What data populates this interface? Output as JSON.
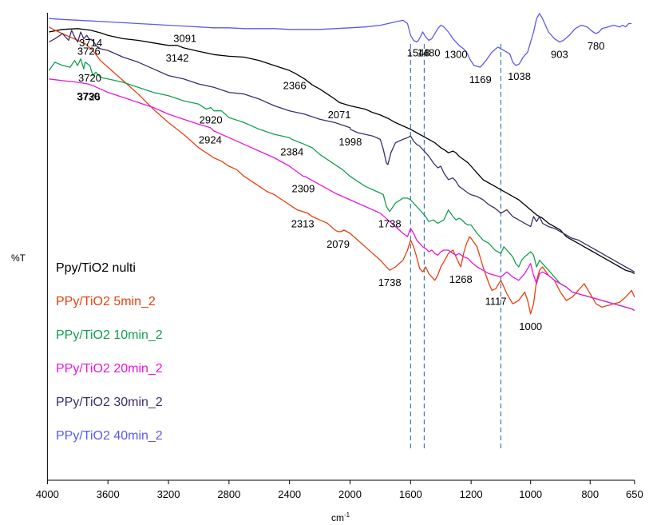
{
  "chart_data": {
    "type": "line",
    "title": "",
    "xlabel": "cm",
    "xlabel_sup": "-1",
    "ylabel": "%T",
    "xlim": [
      4000,
      650
    ],
    "x_reversed": true,
    "x_ticks": [
      "4000",
      "3600",
      "3200",
      "2800",
      "2400",
      "2000",
      "1600",
      "1200",
      "1000",
      "800",
      "650"
    ],
    "y_ticks_shown": false,
    "grid": false,
    "legend_placement": "left",
    "series": [
      {
        "name": "Ppy/TiO2 nulti",
        "color": "#000000",
        "x": [
          3990,
          3900,
          3800,
          3714,
          3650,
          3600,
          3500,
          3400,
          3300,
          3200,
          3142,
          3100,
          3000,
          2900,
          2800,
          2700,
          2600,
          2500,
          2400,
          2366,
          2300,
          2250,
          2200,
          2150,
          2100,
          2071,
          2000,
          1950,
          1900,
          1850,
          1800,
          1750,
          1700,
          1650,
          1600,
          1560,
          1520,
          1480,
          1440,
          1400,
          1380,
          1350,
          1320,
          1300,
          1280,
          1250,
          1220,
          1200,
          1180,
          1160,
          1140,
          1120,
          1100,
          1080,
          1060,
          1040,
          1020,
          1000,
          980,
          960,
          940,
          920,
          900,
          880,
          860,
          840,
          820,
          800,
          780,
          760,
          740,
          720,
          700,
          680,
          660,
          650
        ],
        "y": [
          100,
          101.5,
          102,
          101,
          99.5,
          98,
          96,
          95,
          93.5,
          92,
          92,
          90.5,
          88.5,
          86.5,
          85.5,
          85,
          83,
          80,
          77,
          75.5,
          72,
          68.5,
          66,
          63,
          60,
          58,
          56,
          55,
          54,
          52,
          50.5,
          48.5,
          46,
          44,
          42,
          40,
          38,
          36,
          34,
          31,
          30,
          28,
          29,
          28,
          26,
          24,
          22,
          20,
          16,
          12,
          10,
          8,
          6,
          4,
          2,
          0,
          -3,
          -6,
          -9,
          -11,
          -14,
          -16,
          -18,
          -22,
          -24,
          -26,
          -28,
          -30,
          -32,
          -34,
          -36,
          -38,
          -40,
          -42,
          -43,
          -44
        ]
      },
      {
        "name": "PPy/TiO2 5min_2",
        "color": "#e8400c",
        "x": [
          3990,
          3950,
          3900,
          3850,
          3800,
          3750,
          3700,
          3650,
          3600,
          3500,
          3400,
          3300,
          3200,
          3100,
          3000,
          2950,
          2900,
          2850,
          2800,
          2750,
          2700,
          2650,
          2600,
          2550,
          2500,
          2450,
          2400,
          2350,
          2313,
          2280,
          2250,
          2200,
          2150,
          2100,
          2079,
          2060,
          2040,
          2000,
          1950,
          1900,
          1850,
          1800,
          1760,
          1738,
          1700,
          1650,
          1620,
          1600,
          1580,
          1560,
          1540,
          1520,
          1500,
          1480,
          1460,
          1440,
          1420,
          1400,
          1380,
          1350,
          1320,
          1300,
          1280,
          1268,
          1250,
          1230,
          1210,
          1200,
          1180,
          1160,
          1140,
          1130,
          1117,
          1100,
          1090,
          1080,
          1060,
          1040,
          1020,
          1010,
          1000,
          990,
          980,
          970,
          960,
          940,
          920,
          900,
          880,
          860,
          840,
          820,
          800,
          780,
          760,
          740,
          720,
          700,
          680,
          660,
          650
        ],
        "y": [
          103,
          101,
          99,
          97,
          95,
          93,
          89,
          83,
          79,
          71,
          63,
          54,
          46,
          39,
          31,
          28,
          25,
          23,
          20,
          18,
          14,
          11,
          8,
          5,
          3,
          0,
          -3,
          -6,
          -7,
          -8,
          -10,
          -12,
          -14,
          -18,
          -19,
          -19,
          -18,
          -20,
          -24,
          -28,
          -32,
          -36,
          -40,
          -42,
          -40,
          -36,
          -30,
          -24,
          -28,
          -34,
          -41,
          -43,
          -40,
          -44,
          -46,
          -48,
          -45,
          -40,
          -37,
          -32,
          -30,
          -34,
          -38,
          -40,
          -32,
          -26,
          -22,
          -23,
          -28,
          -40,
          -50,
          -54,
          -53,
          -48,
          -52,
          -56,
          -62,
          -60,
          -55,
          -60,
          -68,
          -62,
          -48,
          -42,
          -40,
          -45,
          -48,
          -55,
          -60,
          -58,
          -54,
          -50,
          -56,
          -62,
          -64,
          -63,
          -62,
          -61,
          -58,
          -54,
          -58
        ]
      },
      {
        "name": "PPy/TiO2 10min_2",
        "color": "#13a050",
        "x": [
          3990,
          3950,
          3900,
          3850,
          3820,
          3800,
          3780,
          3760,
          3750,
          3720,
          3700,
          3680,
          3650,
          3600,
          3500,
          3400,
          3300,
          3200,
          3100,
          3000,
          2950,
          2920,
          2900,
          2850,
          2800,
          2700,
          2600,
          2500,
          2400,
          2384,
          2300,
          2250,
          2200,
          2150,
          2100,
          2050,
          2000,
          1950,
          1900,
          1850,
          1800,
          1780,
          1760,
          1738,
          1700,
          1650,
          1620,
          1600,
          1580,
          1560,
          1540,
          1520,
          1500,
          1480,
          1450,
          1420,
          1400,
          1380,
          1350,
          1320,
          1300,
          1280,
          1260,
          1240,
          1220,
          1200,
          1180,
          1160,
          1140,
          1120,
          1100,
          1090,
          1080,
          1060,
          1050,
          1040,
          1030,
          1020,
          1000,
          990,
          980,
          970,
          960,
          940,
          920,
          900,
          880,
          860,
          840,
          820,
          800,
          780,
          760,
          740,
          720,
          700,
          680,
          660,
          650
        ],
        "y": [
          77,
          82,
          80,
          79,
          83,
          80,
          84,
          78,
          82,
          80,
          74,
          76,
          73,
          72,
          70,
          67,
          64,
          62,
          59,
          57,
          54,
          55,
          53,
          53,
          49,
          46,
          42,
          39,
          37,
          36,
          33,
          31,
          27,
          24,
          21,
          18,
          14,
          11,
          8,
          6,
          4,
          3,
          -4,
          -7,
          -2,
          1,
          1,
          0,
          -2,
          -4,
          -6,
          -8,
          -10,
          -13,
          -12,
          -14,
          -13,
          -12,
          -6,
          -10,
          -12,
          -11,
          -12,
          -14,
          -15,
          -15,
          -20,
          -24,
          -26,
          -30,
          -32,
          -28,
          -30,
          -34,
          -38,
          -40,
          -36,
          -34,
          -31,
          -33,
          -40,
          -36,
          -38,
          -42,
          -46,
          -50,
          -52,
          -55,
          -56,
          -57,
          -58,
          -59,
          -60,
          -61,
          -62,
          -63,
          -64,
          -65,
          -66
        ]
      },
      {
        "name": "PPy/TiO2 20min_2",
        "color": "#e617e0",
        "x": [
          3990,
          3900,
          3800,
          3730,
          3700,
          3600,
          3500,
          3400,
          3300,
          3200,
          3100,
          3000,
          2924,
          2900,
          2800,
          2700,
          2600,
          2500,
          2400,
          2309,
          2300,
          2200,
          2100,
          2000,
          1900,
          1800,
          1750,
          1700,
          1650,
          1620,
          1600,
          1580,
          1560,
          1540,
          1520,
          1500,
          1480,
          1460,
          1440,
          1420,
          1400,
          1380,
          1350,
          1320,
          1300,
          1280,
          1250,
          1220,
          1200,
          1180,
          1160,
          1140,
          1120,
          1100,
          1080,
          1060,
          1040,
          1020,
          1000,
          990,
          980,
          970,
          960,
          940,
          920,
          900,
          880,
          860,
          840,
          820,
          800,
          780,
          760,
          740,
          720,
          700,
          680,
          660,
          650
        ],
        "y": [
          72,
          71,
          70,
          69,
          68,
          64,
          61,
          58,
          55,
          51,
          48,
          45,
          43,
          41,
          37,
          33,
          29,
          25,
          20,
          14,
          14,
          9,
          4,
          0,
          -4,
          -8,
          -12,
          -16,
          -20,
          -22,
          -17,
          -20,
          -24,
          -26,
          -28,
          -29,
          -31,
          -30,
          -32,
          -33,
          -31,
          -30,
          -30,
          -32,
          -33,
          -32,
          -34,
          -35,
          -37,
          -40,
          -42,
          -44,
          -45,
          -46,
          -43,
          -46,
          -48,
          -44,
          -38,
          -45,
          -50,
          -44,
          -43,
          -45,
          -48,
          -50,
          -52,
          -55,
          -56,
          -57,
          -58,
          -59,
          -60,
          -61,
          -62,
          -63,
          -64,
          -65,
          -66
        ]
      },
      {
        "name": "PPy/TiO2 30min_2",
        "color": "#3f2e6e",
        "x": [
          3990,
          3950,
          3900,
          3860,
          3840,
          3820,
          3800,
          3780,
          3760,
          3740,
          3726,
          3700,
          3680,
          3650,
          3600,
          3500,
          3400,
          3300,
          3200,
          3100,
          3000,
          2900,
          2800,
          2700,
          2600,
          2500,
          2400,
          2300,
          2200,
          2100,
          2000,
          1998,
          1950,
          1900,
          1850,
          1800,
          1780,
          1760,
          1750,
          1730,
          1700,
          1650,
          1620,
          1600,
          1580,
          1560,
          1540,
          1520,
          1500,
          1480,
          1450,
          1420,
          1400,
          1380,
          1350,
          1320,
          1300,
          1280,
          1250,
          1220,
          1200,
          1180,
          1160,
          1140,
          1120,
          1100,
          1080,
          1060,
          1040,
          1020,
          1000,
          990,
          980,
          970,
          960,
          940,
          920,
          900,
          880,
          860,
          840,
          820,
          800,
          780,
          760,
          740,
          720,
          700,
          680,
          660,
          650
        ],
        "y": [
          94,
          96,
          99,
          95,
          101,
          97,
          94,
          100,
          96,
          98,
          96,
          95,
          92,
          90,
          89,
          85,
          82,
          78,
          74,
          72,
          69,
          67,
          64,
          63,
          60,
          56,
          53,
          51,
          48,
          46,
          43,
          42,
          40,
          39,
          38,
          36,
          30,
          22,
          21,
          28,
          34,
          36,
          37,
          38,
          35,
          33,
          32,
          30,
          28,
          26,
          22,
          19,
          20,
          16,
          12,
          13,
          11,
          8,
          6,
          4,
          3,
          2,
          0,
          -3,
          -5,
          -8,
          -6,
          -10,
          -12,
          -14,
          -16,
          -10,
          -13,
          -10,
          -14,
          -16,
          -17,
          -19,
          -21,
          -23,
          -24,
          -26,
          -28,
          -30,
          -32,
          -34,
          -36,
          -38,
          -40,
          -42,
          -43
        ]
      },
      {
        "name": "PPy/TiO2 40min_2",
        "color": "#5a5af0",
        "x": [
          3990,
          3900,
          3800,
          3700,
          3600,
          3500,
          3400,
          3300,
          3200,
          3100,
          3000,
          2900,
          2800,
          2700,
          2600,
          2500,
          2400,
          2300,
          2200,
          2100,
          2000,
          1900,
          1800,
          1750,
          1700,
          1650,
          1620,
          1600,
          1580,
          1560,
          1548,
          1530,
          1520,
          1500,
          1480,
          1460,
          1440,
          1420,
          1400,
          1380,
          1350,
          1320,
          1300,
          1280,
          1250,
          1230,
          1210,
          1190,
          1169,
          1150,
          1130,
          1110,
          1090,
          1070,
          1060,
          1050,
          1038,
          1025,
          1010,
          1000,
          990,
          980,
          970,
          960,
          950,
          940,
          920,
          903,
          890,
          870,
          850,
          830,
          810,
          790,
          780,
          770,
          760,
          740,
          720,
          700,
          690,
          680,
          670,
          660
        ],
        "y": [
          108,
          107.5,
          107,
          106.5,
          106,
          105.5,
          105,
          104.5,
          104,
          103.5,
          103,
          102.5,
          102.5,
          102,
          102,
          102,
          101.5,
          101.5,
          101.5,
          102,
          102.5,
          103,
          104,
          105,
          106,
          107,
          105,
          98,
          95,
          94,
          95,
          98,
          100,
          97,
          95,
          96,
          99,
          102,
          104,
          103,
          100,
          96,
          94,
          92,
          90,
          88,
          84,
          80,
          79,
          83,
          88,
          91,
          89,
          87,
          82,
          80,
          81,
          85,
          88,
          94,
          100,
          108,
          111,
          108,
          104,
          100,
          96,
          94,
          95,
          98,
          102,
          104,
          103,
          100,
          99,
          100,
          102,
          103,
          104,
          103,
          104,
          103,
          105,
          105
        ]
      }
    ],
    "reference_lines_x": [
      1600,
      1510,
      1100
    ],
    "annotations": [
      {
        "text": "3714",
        "x": 3714,
        "series": 0
      },
      {
        "text": "3142",
        "x": 3142,
        "series": 0
      },
      {
        "text": "2366",
        "x": 2366,
        "series": 0
      },
      {
        "text": "2071",
        "x": 2071,
        "series": 0
      },
      {
        "text": "3091",
        "x": 3091,
        "series": 5
      },
      {
        "text": "1548",
        "x": 1548,
        "series": 5
      },
      {
        "text": "1480",
        "x": 1480,
        "series": 5
      },
      {
        "text": "1300",
        "x": 1300,
        "series": 5
      },
      {
        "text": "1169",
        "x": 1169,
        "series": 5
      },
      {
        "text": "1038",
        "x": 1038,
        "series": 5
      },
      {
        "text": "903",
        "x": 903,
        "series": 5
      },
      {
        "text": "780",
        "x": 780,
        "series": 5
      },
      {
        "text": "3726",
        "x": 3726,
        "series": 4
      },
      {
        "text": "1998",
        "x": 1998,
        "series": 4
      },
      {
        "text": "3720",
        "x": 3720,
        "series": 2
      },
      {
        "text": "2920",
        "x": 2920,
        "series": 2
      },
      {
        "text": "2384",
        "x": 2384,
        "series": 2
      },
      {
        "text": "1738",
        "x": 1738,
        "series": 2
      },
      {
        "text": "2313",
        "x": 2313,
        "series": 1
      },
      {
        "text": "2079",
        "x": 2079,
        "series": 1
      },
      {
        "text": "1738",
        "x": 1738,
        "series": 1
      },
      {
        "text": "1268",
        "x": 1268,
        "series": 1
      },
      {
        "text": "1117",
        "x": 1117,
        "series": 1
      },
      {
        "text": "1000",
        "x": 1000,
        "series": 1
      },
      {
        "text": "3730",
        "x": 3730,
        "series": 3
      },
      {
        "text": "3726",
        "x": 3726,
        "series": 3
      },
      {
        "text": "2924",
        "x": 2924,
        "series": 3
      },
      {
        "text": "2309",
        "x": 2309,
        "series": 3
      }
    ]
  }
}
